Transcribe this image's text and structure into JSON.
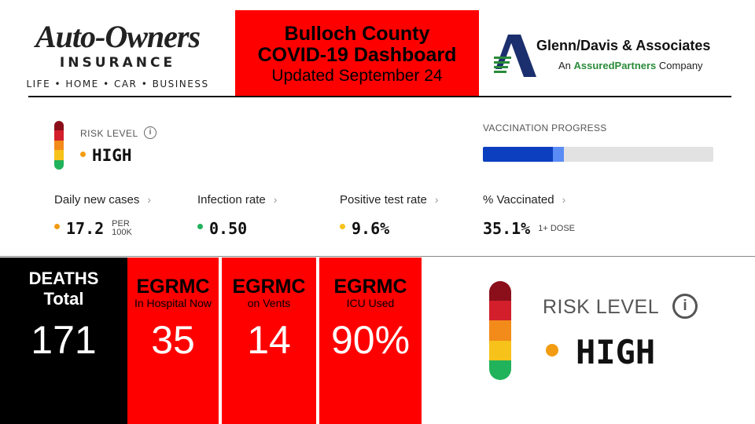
{
  "header": {
    "left_logo": {
      "brand": "Auto-Owners",
      "subtitle": "INSURANCE",
      "tagline": "LIFE • HOME • CAR • BUSINESS"
    },
    "title": {
      "line1": "Bulloch County",
      "line2": "COVID-19 Dashboard",
      "line3": "Updated September 24"
    },
    "right_logo": {
      "name": "Glenn/Davis & Associates",
      "sub_prefix": "An ",
      "sub_brand": "AssuredPartners",
      "sub_suffix": " Company",
      "mark_icon": "triangle-a-logo-icon"
    }
  },
  "risk": {
    "label": "RISK LEVEL",
    "info_icon": "info-icon",
    "info_glyph": "i",
    "value": "HIGH",
    "dot_color": "#f39c12",
    "scale_colors": [
      "#8b0f1a",
      "#d21f2b",
      "#f28b1a",
      "#f7c21a",
      "#21b35b"
    ]
  },
  "vaccination": {
    "label": "VACCINATION PROGRESS",
    "fully_fraction": 0.305,
    "partial_fraction": 0.046,
    "fully_color": "#0b3fbf",
    "partial_color": "#5b8cf5"
  },
  "metrics": [
    {
      "label": "Daily new cases",
      "chevron": "›",
      "value": "17.2",
      "unit_line1": "PER",
      "unit_line2": "100K",
      "dot_color": "#f39c12",
      "show_dot": true
    },
    {
      "label": "Infection rate",
      "chevron": "›",
      "value": "0.50",
      "unit_line1": "",
      "unit_line2": "",
      "dot_color": "#21b35b",
      "show_dot": true
    },
    {
      "label": "Positive test rate",
      "chevron": "›",
      "value": "9.6%",
      "unit_line1": "",
      "unit_line2": "",
      "dot_color": "#f7c21a",
      "show_dot": true
    },
    {
      "label": "% Vaccinated",
      "chevron": "›",
      "value": "35.1%",
      "unit_line1": "1+ DOSE",
      "unit_line2": "",
      "dot_color": "",
      "show_dot": false
    }
  ],
  "tiles": [
    {
      "title": "DEATHS",
      "title2": "Total",
      "sub": "",
      "value": "171"
    },
    {
      "title": "EGRMC",
      "title2": "",
      "sub": "In Hospital Now",
      "value": "35"
    },
    {
      "title": "EGRMC",
      "title2": "",
      "sub": "on Vents",
      "value": "14"
    },
    {
      "title": "EGRMC",
      "title2": "",
      "sub": "ICU Used",
      "value": "90%"
    }
  ]
}
